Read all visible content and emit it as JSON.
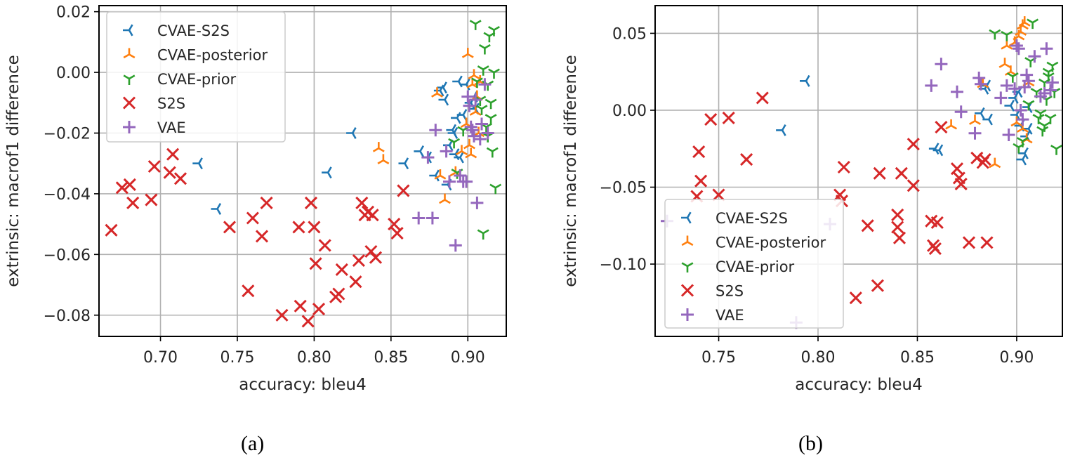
{
  "captions": {
    "a": "(a)",
    "b": "(b)"
  },
  "series_styles": {
    "CVAE-S2S": {
      "color": "#1f77b4",
      "marker": "tri_left"
    },
    "CVAE-posterior": {
      "color": "#ff7f0e",
      "marker": "tri_up"
    },
    "CVAE-prior": {
      "color": "#2ca02c",
      "marker": "tri_down"
    },
    "S2S": {
      "color": "#d62728",
      "marker": "x"
    },
    "VAE": {
      "color": "#9467bd",
      "marker": "plus"
    }
  },
  "chart_data": [
    {
      "type": "scatter",
      "title": "",
      "xlabel": "accuracy: bleu4",
      "ylabel": "extrinsic: macrof1 difference",
      "xlim": [
        0.66,
        0.925
      ],
      "ylim": [
        -0.087,
        0.022
      ],
      "xticks": [
        0.7,
        0.75,
        0.8,
        0.85,
        0.9
      ],
      "xtick_labels": [
        "0.70",
        "0.75",
        "0.80",
        "0.85",
        "0.90"
      ],
      "yticks": [
        0.02,
        0.0,
        -0.02,
        -0.04,
        -0.06,
        -0.08
      ],
      "ytick_labels": [
        "0.02",
        "0.00",
        "−0.02",
        "−0.04",
        "−0.06",
        "−0.08"
      ],
      "grid": true,
      "legend_position": "upper-left",
      "legend": [
        "CVAE-S2S",
        "CVAE-posterior",
        "CVAE-prior",
        "S2S",
        "VAE"
      ],
      "series": [
        {
          "name": "CVAE-S2S",
          "points": [
            [
              0.725,
              -0.03
            ],
            [
              0.737,
              -0.045
            ],
            [
              0.809,
              -0.033
            ],
            [
              0.825,
              -0.02
            ],
            [
              0.859,
              -0.03
            ],
            [
              0.869,
              -0.026
            ],
            [
              0.874,
              -0.028
            ],
            [
              0.879,
              -0.034
            ],
            [
              0.882,
              -0.006
            ],
            [
              0.884,
              -0.005
            ],
            [
              0.885,
              -0.009
            ],
            [
              0.887,
              -0.037
            ],
            [
              0.888,
              -0.024
            ],
            [
              0.89,
              -0.019
            ],
            [
              0.891,
              -0.02
            ],
            [
              0.892,
              -0.027
            ],
            [
              0.893,
              -0.015
            ],
            [
              0.894,
              -0.003
            ],
            [
              0.895,
              -0.028
            ],
            [
              0.897,
              -0.014
            ],
            [
              0.899,
              -0.004
            ],
            [
              0.902,
              -0.01
            ],
            [
              0.904,
              -0.008
            ],
            [
              0.905,
              -0.012
            ]
          ]
        },
        {
          "name": "CVAE-posterior",
          "points": [
            [
              0.842,
              -0.025
            ],
            [
              0.845,
              -0.029
            ],
            [
              0.88,
              -0.007
            ],
            [
              0.882,
              -0.034
            ],
            [
              0.885,
              -0.042
            ],
            [
              0.892,
              -0.033
            ],
            [
              0.896,
              -0.026
            ],
            [
              0.899,
              -0.017
            ],
            [
              0.9,
              0.006
            ],
            [
              0.901,
              -0.024
            ],
            [
              0.902,
              -0.027
            ],
            [
              0.903,
              -0.004
            ],
            [
              0.904,
              -0.001
            ],
            [
              0.905,
              -0.013
            ],
            [
              0.906,
              -0.008
            ],
            [
              0.907,
              -0.02
            ],
            [
              0.908,
              -0.003
            ]
          ]
        },
        {
          "name": "CVAE-prior",
          "points": [
            [
              0.891,
              -0.023
            ],
            [
              0.893,
              -0.033
            ],
            [
              0.897,
              -0.019
            ],
            [
              0.905,
              0.016
            ],
            [
              0.906,
              -0.003
            ],
            [
              0.908,
              -0.009
            ],
            [
              0.909,
              -0.012
            ],
            [
              0.91,
              0.001
            ],
            [
              0.911,
              0.008
            ],
            [
              0.912,
              -0.018
            ],
            [
              0.913,
              -0.021
            ],
            [
              0.914,
              0.012
            ],
            [
              0.915,
              -0.01
            ],
            [
              0.916,
              -0.026
            ],
            [
              0.917,
              0.014
            ],
            [
              0.917,
              0.0
            ],
            [
              0.918,
              -0.038
            ],
            [
              0.91,
              -0.053
            ],
            [
              0.913,
              -0.004
            ],
            [
              0.915,
              -0.015
            ]
          ]
        },
        {
          "name": "S2S",
          "points": [
            [
              0.668,
              -0.052
            ],
            [
              0.675,
              -0.038
            ],
            [
              0.68,
              -0.037
            ],
            [
              0.682,
              -0.043
            ],
            [
              0.694,
              -0.042
            ],
            [
              0.696,
              -0.031
            ],
            [
              0.706,
              -0.033
            ],
            [
              0.708,
              -0.027
            ],
            [
              0.713,
              -0.035
            ],
            [
              0.745,
              -0.051
            ],
            [
              0.757,
              -0.072
            ],
            [
              0.76,
              -0.048
            ],
            [
              0.766,
              -0.054
            ],
            [
              0.769,
              -0.043
            ],
            [
              0.779,
              -0.08
            ],
            [
              0.79,
              -0.051
            ],
            [
              0.791,
              -0.077
            ],
            [
              0.796,
              -0.082
            ],
            [
              0.798,
              -0.043
            ],
            [
              0.8,
              -0.051
            ],
            [
              0.801,
              -0.063
            ],
            [
              0.803,
              -0.078
            ],
            [
              0.807,
              -0.057
            ],
            [
              0.814,
              -0.074
            ],
            [
              0.816,
              -0.073
            ],
            [
              0.818,
              -0.065
            ],
            [
              0.827,
              -0.069
            ],
            [
              0.829,
              -0.062
            ],
            [
              0.831,
              -0.043
            ],
            [
              0.833,
              -0.047
            ],
            [
              0.835,
              -0.046
            ],
            [
              0.837,
              -0.059
            ],
            [
              0.838,
              -0.047
            ],
            [
              0.84,
              -0.061
            ],
            [
              0.852,
              -0.05
            ],
            [
              0.854,
              -0.053
            ],
            [
              0.858,
              -0.039
            ]
          ]
        },
        {
          "name": "VAE",
          "points": [
            [
              0.868,
              -0.048
            ],
            [
              0.874,
              -0.028
            ],
            [
              0.877,
              -0.048
            ],
            [
              0.879,
              -0.019
            ],
            [
              0.886,
              -0.026
            ],
            [
              0.888,
              -0.036
            ],
            [
              0.892,
              -0.057
            ],
            [
              0.895,
              -0.034
            ],
            [
              0.897,
              -0.036
            ],
            [
              0.899,
              -0.036
            ],
            [
              0.9,
              -0.008
            ],
            [
              0.901,
              -0.011
            ],
            [
              0.902,
              -0.018
            ],
            [
              0.903,
              -0.019
            ],
            [
              0.904,
              -0.021
            ],
            [
              0.905,
              -0.009
            ],
            [
              0.906,
              -0.043
            ],
            [
              0.908,
              -0.022
            ],
            [
              0.909,
              -0.017
            ],
            [
              0.911,
              -0.004
            ],
            [
              0.913,
              -0.02
            ]
          ]
        }
      ]
    },
    {
      "type": "scatter",
      "title": "",
      "xlabel": "accuracy: bleu4",
      "ylabel": "extrinsic: macrof1 difference",
      "xlim": [
        0.718,
        0.923
      ],
      "ylim": [
        -0.147,
        0.068
      ],
      "xticks": [
        0.75,
        0.8,
        0.85,
        0.9
      ],
      "xtick_labels": [
        "0.75",
        "0.80",
        "0.85",
        "0.90"
      ],
      "yticks": [
        0.05,
        0.0,
        -0.05,
        -0.1
      ],
      "ytick_labels": [
        "0.05",
        "0.00",
        "−0.05",
        "−0.10"
      ],
      "grid": true,
      "legend_position": "lower-left",
      "legend": [
        "CVAE-S2S",
        "CVAE-posterior",
        "CVAE-prior",
        "S2S",
        "VAE"
      ],
      "series": [
        {
          "name": "CVAE-S2S",
          "points": [
            [
              0.782,
              -0.013
            ],
            [
              0.794,
              0.019
            ],
            [
              0.859,
              -0.025
            ],
            [
              0.861,
              -0.026
            ],
            [
              0.882,
              -0.002
            ],
            [
              0.884,
              0.014
            ],
            [
              0.885,
              0.016
            ],
            [
              0.886,
              -0.006
            ],
            [
              0.897,
              0.003
            ],
            [
              0.899,
              0.008
            ],
            [
              0.9,
              -0.003
            ],
            [
              0.901,
              0.012
            ],
            [
              0.902,
              -0.01
            ],
            [
              0.903,
              -0.032
            ],
            [
              0.904,
              -0.028
            ],
            [
              0.905,
              -0.017
            ],
            [
              0.906,
              0.002
            ],
            [
              0.906,
              -0.012
            ]
          ]
        },
        {
          "name": "CVAE-posterior",
          "points": [
            [
              0.867,
              -0.01
            ],
            [
              0.879,
              -0.007
            ],
            [
              0.883,
              0.017
            ],
            [
              0.889,
              -0.035
            ],
            [
              0.894,
              0.03
            ],
            [
              0.895,
              0.042
            ],
            [
              0.897,
              0.025
            ],
            [
              0.899,
              0.044
            ],
            [
              0.9,
              -0.008
            ],
            [
              0.901,
              0.048
            ],
            [
              0.902,
              0.051
            ],
            [
              0.903,
              0.055
            ],
            [
              0.903,
              -0.012
            ],
            [
              0.904,
              0.057
            ],
            [
              0.905,
              -0.019
            ],
            [
              0.906,
              0.018
            ]
          ]
        },
        {
          "name": "CVAE-prior",
          "points": [
            [
              0.889,
              0.05
            ],
            [
              0.895,
              0.049
            ],
            [
              0.898,
              0.022
            ],
            [
              0.901,
              -0.024
            ],
            [
              0.903,
              -0.02
            ],
            [
              0.906,
              0.004
            ],
            [
              0.907,
              0.032
            ],
            [
              0.908,
              0.057
            ],
            [
              0.91,
              0.012
            ],
            [
              0.911,
              -0.005
            ],
            [
              0.912,
              -0.002
            ],
            [
              0.913,
              -0.013
            ],
            [
              0.914,
              0.018
            ],
            [
              0.915,
              0.007
            ],
            [
              0.916,
              0.022
            ],
            [
              0.917,
              -0.005
            ],
            [
              0.918,
              0.029
            ],
            [
              0.919,
              0.012
            ],
            [
              0.92,
              -0.025
            ],
            [
              0.914,
              -0.01
            ],
            [
              0.916,
              0.025
            ]
          ]
        },
        {
          "name": "S2S",
          "points": [
            [
              0.739,
              -0.056
            ],
            [
              0.74,
              -0.027
            ],
            [
              0.741,
              -0.046
            ],
            [
              0.746,
              -0.006
            ],
            [
              0.75,
              -0.055
            ],
            [
              0.755,
              -0.005
            ],
            [
              0.764,
              -0.032
            ],
            [
              0.772,
              0.008
            ],
            [
              0.811,
              -0.055
            ],
            [
              0.812,
              -0.059
            ],
            [
              0.813,
              -0.037
            ],
            [
              0.819,
              -0.122
            ],
            [
              0.825,
              -0.075
            ],
            [
              0.83,
              -0.114
            ],
            [
              0.831,
              -0.041
            ],
            [
              0.84,
              -0.068
            ],
            [
              0.841,
              -0.083
            ],
            [
              0.842,
              -0.041
            ],
            [
              0.84,
              -0.076
            ],
            [
              0.848,
              -0.049
            ],
            [
              0.848,
              -0.022
            ],
            [
              0.857,
              -0.072
            ],
            [
              0.858,
              -0.088
            ],
            [
              0.859,
              -0.09
            ],
            [
              0.86,
              -0.073
            ],
            [
              0.862,
              -0.011
            ],
            [
              0.87,
              -0.038
            ],
            [
              0.871,
              -0.044
            ],
            [
              0.872,
              -0.048
            ],
            [
              0.876,
              -0.086
            ],
            [
              0.88,
              -0.031
            ],
            [
              0.883,
              -0.034
            ],
            [
              0.884,
              -0.032
            ],
            [
              0.885,
              -0.086
            ]
          ]
        },
        {
          "name": "VAE",
          "points": [
            [
              0.724,
              -0.072
            ],
            [
              0.789,
              -0.138
            ],
            [
              0.806,
              -0.074
            ],
            [
              0.857,
              0.016
            ],
            [
              0.862,
              0.03
            ],
            [
              0.87,
              0.012
            ],
            [
              0.872,
              -0.001
            ],
            [
              0.879,
              -0.015
            ],
            [
              0.881,
              0.021
            ],
            [
              0.882,
              0.017
            ],
            [
              0.892,
              0.008
            ],
            [
              0.895,
              0.016
            ],
            [
              0.896,
              -0.016
            ],
            [
              0.899,
              0.014
            ],
            [
              0.9,
              0.042
            ],
            [
              0.901,
              0.04
            ],
            [
              0.902,
              0.0
            ],
            [
              0.903,
              -0.006
            ],
            [
              0.904,
              0.015
            ],
            [
              0.905,
              0.023
            ],
            [
              0.906,
              0.019
            ],
            [
              0.909,
              0.035
            ],
            [
              0.912,
              0.009
            ],
            [
              0.914,
              0.011
            ],
            [
              0.915,
              0.04
            ],
            [
              0.917,
              0.013
            ],
            [
              0.918,
              0.018
            ]
          ]
        }
      ]
    }
  ]
}
